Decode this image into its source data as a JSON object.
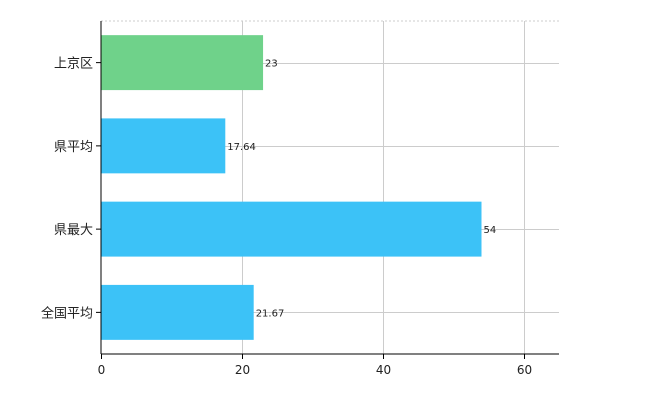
{
  "chart_data": {
    "type": "bar",
    "orientation": "horizontal",
    "categories": [
      "上京区",
      "県平均",
      "県最大",
      "全国平均"
    ],
    "values": [
      23,
      17.64,
      54,
      21.67
    ],
    "data_labels": [
      "23",
      "17.64",
      "54",
      "21.67"
    ],
    "bar_colors": [
      "#6fd28a",
      "#3cc2f7",
      "#3cc2f7",
      "#3cc2f7"
    ],
    "xlim": [
      0,
      65
    ],
    "xticks": [
      0,
      20,
      40,
      60
    ],
    "xtick_labels": [
      "0",
      "20",
      "40",
      "60"
    ],
    "grid": true,
    "gridline_color": "#cccccc",
    "axis_color": "#000000"
  }
}
